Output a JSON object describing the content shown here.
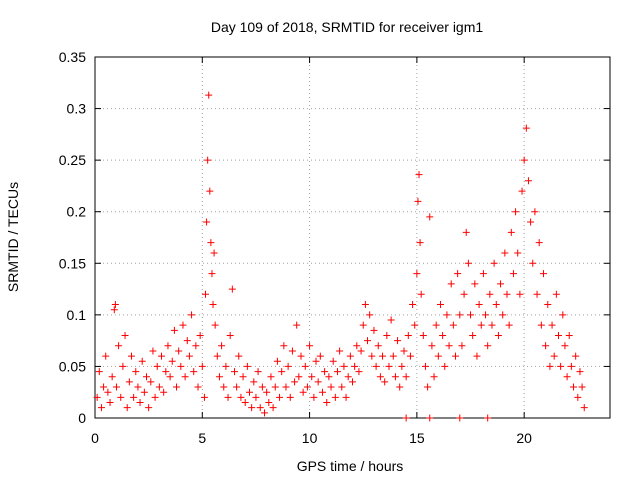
{
  "chart_data": {
    "type": "scatter",
    "title": "Day 109 of 2018, SRMTID for receiver igm1",
    "xlabel": "GPS time / hours",
    "ylabel": "SRMTID / TECUs",
    "xlim": [
      0,
      24
    ],
    "ylim": [
      0,
      0.35
    ],
    "xticks": [
      0,
      5,
      10,
      15,
      20
    ],
    "xtick_labels": [
      "0",
      "5",
      "10",
      "15",
      "20"
    ],
    "yticks": [
      0,
      0.05,
      0.1,
      0.15,
      0.2,
      0.25,
      0.3,
      0.35
    ],
    "ytick_labels": [
      "0",
      "0.05",
      "0.1",
      "0.15",
      "0.2",
      "0.25",
      "0.3",
      "0.35"
    ],
    "grid": true,
    "marker": "+",
    "color": "#ff0000",
    "series": [
      {
        "name": "SRMTID",
        "points": [
          [
            0.1,
            0.02
          ],
          [
            0.2,
            0.045
          ],
          [
            0.3,
            0.01
          ],
          [
            0.4,
            0.03
          ],
          [
            0.5,
            0.06
          ],
          [
            0.6,
            0.025
          ],
          [
            0.7,
            0.015
          ],
          [
            0.8,
            0.04
          ],
          [
            0.9,
            0.105
          ],
          [
            0.95,
            0.11
          ],
          [
            1.0,
            0.03
          ],
          [
            1.1,
            0.07
          ],
          [
            1.2,
            0.02
          ],
          [
            1.3,
            0.05
          ],
          [
            1.4,
            0.08
          ],
          [
            1.5,
            0.01
          ],
          [
            1.6,
            0.035
          ],
          [
            1.7,
            0.06
          ],
          [
            1.8,
            0.02
          ],
          [
            1.9,
            0.045
          ],
          [
            2.0,
            0.03
          ],
          [
            2.1,
            0.015
          ],
          [
            2.2,
            0.055
          ],
          [
            2.3,
            0.025
          ],
          [
            2.4,
            0.04
          ],
          [
            2.5,
            0.01
          ],
          [
            2.6,
            0.035
          ],
          [
            2.7,
            0.065
          ],
          [
            2.8,
            0.02
          ],
          [
            2.9,
            0.05
          ],
          [
            3.0,
            0.03
          ],
          [
            3.1,
            0.06
          ],
          [
            3.2,
            0.025
          ],
          [
            3.3,
            0.045
          ],
          [
            3.4,
            0.07
          ],
          [
            3.5,
            0.04
          ],
          [
            3.6,
            0.055
          ],
          [
            3.7,
            0.085
          ],
          [
            3.8,
            0.03
          ],
          [
            3.9,
            0.065
          ],
          [
            4.0,
            0.05
          ],
          [
            4.1,
            0.09
          ],
          [
            4.2,
            0.04
          ],
          [
            4.3,
            0.075
          ],
          [
            4.4,
            0.06
          ],
          [
            4.5,
            0.1
          ],
          [
            4.6,
            0.045
          ],
          [
            4.7,
            0.07
          ],
          [
            4.8,
            0.03
          ],
          [
            4.9,
            0.08
          ],
          [
            5.0,
            0.05
          ],
          [
            5.1,
            0.02
          ],
          [
            5.15,
            0.12
          ],
          [
            5.2,
            0.19
          ],
          [
            5.25,
            0.25
          ],
          [
            5.3,
            0.313
          ],
          [
            5.35,
            0.22
          ],
          [
            5.4,
            0.17
          ],
          [
            5.45,
            0.14
          ],
          [
            5.5,
            0.11
          ],
          [
            5.55,
            0.16
          ],
          [
            5.6,
            0.09
          ],
          [
            5.7,
            0.06
          ],
          [
            5.8,
            0.04
          ],
          [
            5.9,
            0.07
          ],
          [
            6.0,
            0.03
          ],
          [
            6.1,
            0.05
          ],
          [
            6.2,
            0.02
          ],
          [
            6.3,
            0.08
          ],
          [
            6.4,
            0.125
          ],
          [
            6.5,
            0.045
          ],
          [
            6.6,
            0.03
          ],
          [
            6.7,
            0.06
          ],
          [
            6.8,
            0.02
          ],
          [
            6.9,
            0.04
          ],
          [
            7.0,
            0.015
          ],
          [
            7.1,
            0.05
          ],
          [
            7.2,
            0.025
          ],
          [
            7.3,
            0.01
          ],
          [
            7.4,
            0.035
          ],
          [
            7.5,
            0.02
          ],
          [
            7.6,
            0.045
          ],
          [
            7.7,
            0.01
          ],
          [
            7.8,
            0.03
          ],
          [
            7.9,
            0.005
          ],
          [
            8.0,
            0.025
          ],
          [
            8.1,
            0.015
          ],
          [
            8.2,
            0.04
          ],
          [
            8.3,
            0.01
          ],
          [
            8.4,
            0.03
          ],
          [
            8.5,
            0.055
          ],
          [
            8.6,
            0.02
          ],
          [
            8.7,
            0.045
          ],
          [
            8.8,
            0.07
          ],
          [
            8.9,
            0.03
          ],
          [
            9.0,
            0.05
          ],
          [
            9.1,
            0.02
          ],
          [
            9.2,
            0.065
          ],
          [
            9.3,
            0.035
          ],
          [
            9.4,
            0.09
          ],
          [
            9.5,
            0.04
          ],
          [
            9.6,
            0.06
          ],
          [
            9.7,
            0.025
          ],
          [
            9.8,
            0.05
          ],
          [
            9.9,
            0.03
          ],
          [
            10.0,
            0.07
          ],
          [
            10.1,
            0.04
          ],
          [
            10.2,
            0.02
          ],
          [
            10.3,
            0.055
          ],
          [
            10.4,
            0.035
          ],
          [
            10.5,
            0.06
          ],
          [
            10.6,
            0.025
          ],
          [
            10.7,
            0.045
          ],
          [
            10.8,
            0.015
          ],
          [
            10.9,
            0.04
          ],
          [
            11.0,
            0.03
          ],
          [
            11.1,
            0.055
          ],
          [
            11.2,
            0.02
          ],
          [
            11.3,
            0.045
          ],
          [
            11.4,
            0.065
          ],
          [
            11.5,
            0.03
          ],
          [
            11.6,
            0.05
          ],
          [
            11.7,
            0.02
          ],
          [
            11.8,
            0.04
          ],
          [
            11.9,
            0.06
          ],
          [
            12.0,
            0.035
          ],
          [
            12.1,
            0.05
          ],
          [
            12.2,
            0.07
          ],
          [
            12.3,
            0.045
          ],
          [
            12.4,
            0.065
          ],
          [
            12.5,
            0.09
          ],
          [
            12.6,
            0.11
          ],
          [
            12.7,
            0.075
          ],
          [
            12.8,
            0.1
          ],
          [
            12.9,
            0.06
          ],
          [
            13.0,
            0.085
          ],
          [
            13.1,
            0.05
          ],
          [
            13.2,
            0.07
          ],
          [
            13.3,
            0.04
          ],
          [
            13.4,
            0.06
          ],
          [
            13.5,
            0.035
          ],
          [
            13.6,
            0.08
          ],
          [
            13.7,
            0.05
          ],
          [
            13.8,
            0.095
          ],
          [
            13.9,
            0.06
          ],
          [
            14.0,
            0.04
          ],
          [
            14.1,
            0.075
          ],
          [
            14.2,
            0.03
          ],
          [
            14.3,
            0.05
          ],
          [
            14.4,
            0.065
          ],
          [
            14.5,
            0.04
          ],
          [
            14.6,
            0.08
          ],
          [
            14.7,
            0.06
          ],
          [
            14.8,
            0.11
          ],
          [
            14.9,
            0.09
          ],
          [
            15.0,
            0.14
          ],
          [
            15.05,
            0.21
          ],
          [
            15.1,
            0.236
          ],
          [
            15.15,
            0.17
          ],
          [
            15.2,
            0.12
          ],
          [
            15.3,
            0.08
          ],
          [
            15.4,
            0.05
          ],
          [
            15.5,
            0.03
          ],
          [
            15.6,
            0.195
          ],
          [
            15.7,
            0.07
          ],
          [
            15.8,
            0.04
          ],
          [
            15.9,
            0.09
          ],
          [
            16.0,
            0.06
          ],
          [
            16.1,
            0.11
          ],
          [
            16.2,
            0.08
          ],
          [
            16.3,
            0.05
          ],
          [
            16.4,
            0.1
          ],
          [
            16.5,
            0.07
          ],
          [
            16.6,
            0.13
          ],
          [
            16.7,
            0.09
          ],
          [
            16.8,
            0.06
          ],
          [
            16.9,
            0.14
          ],
          [
            17.0,
            0.1
          ],
          [
            17.1,
            0.07
          ],
          [
            17.2,
            0.12
          ],
          [
            17.3,
            0.18
          ],
          [
            17.4,
            0.15
          ],
          [
            17.5,
            0.1
          ],
          [
            17.6,
            0.08
          ],
          [
            17.7,
            0.13
          ],
          [
            17.8,
            0.06
          ],
          [
            17.9,
            0.11
          ],
          [
            18.0,
            0.09
          ],
          [
            18.1,
            0.14
          ],
          [
            18.2,
            0.1
          ],
          [
            18.3,
            0.07
          ],
          [
            18.4,
            0.12
          ],
          [
            18.5,
            0.09
          ],
          [
            18.6,
            0.15
          ],
          [
            18.7,
            0.11
          ],
          [
            18.8,
            0.08
          ],
          [
            18.9,
            0.13
          ],
          [
            19.0,
            0.1
          ],
          [
            19.1,
            0.16
          ],
          [
            19.2,
            0.12
          ],
          [
            19.3,
            0.09
          ],
          [
            19.4,
            0.18
          ],
          [
            19.5,
            0.14
          ],
          [
            19.6,
            0.2
          ],
          [
            19.7,
            0.16
          ],
          [
            19.8,
            0.12
          ],
          [
            19.9,
            0.22
          ],
          [
            20.0,
            0.25
          ],
          [
            20.1,
            0.281
          ],
          [
            20.2,
            0.23
          ],
          [
            20.3,
            0.19
          ],
          [
            20.4,
            0.15
          ],
          [
            20.5,
            0.2
          ],
          [
            20.6,
            0.12
          ],
          [
            20.7,
            0.17
          ],
          [
            20.8,
            0.09
          ],
          [
            20.9,
            0.14
          ],
          [
            21.0,
            0.07
          ],
          [
            21.1,
            0.11
          ],
          [
            21.2,
            0.05
          ],
          [
            21.3,
            0.09
          ],
          [
            21.4,
            0.06
          ],
          [
            21.5,
            0.12
          ],
          [
            21.6,
            0.08
          ],
          [
            21.7,
            0.05
          ],
          [
            21.8,
            0.1
          ],
          [
            21.9,
            0.07
          ],
          [
            22.0,
            0.04
          ],
          [
            22.1,
            0.08
          ],
          [
            22.2,
            0.05
          ],
          [
            22.3,
            0.03
          ],
          [
            22.4,
            0.06
          ],
          [
            22.5,
            0.02
          ],
          [
            22.6,
            0.045
          ],
          [
            22.7,
            0.03
          ],
          [
            22.8,
            0.01
          ],
          [
            14.5,
            0.0
          ],
          [
            15.6,
            0.0
          ],
          [
            17.0,
            0.0
          ],
          [
            18.3,
            0.0
          ]
        ]
      }
    ]
  }
}
